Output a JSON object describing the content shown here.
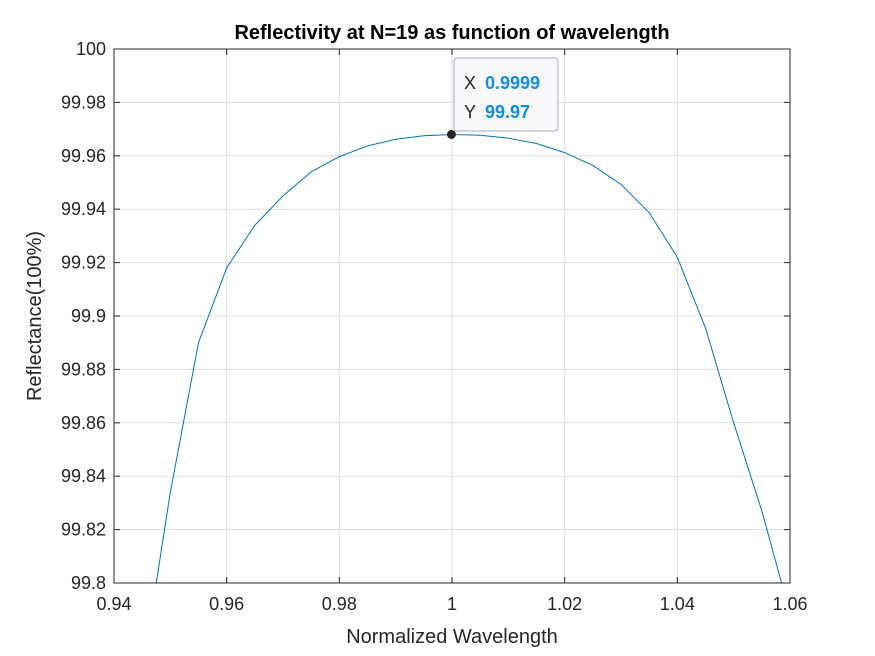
{
  "chart_data": {
    "type": "line",
    "title": "Reflectivity at N=19 as function of wavelength",
    "xlabel": "Normalized Wavelength",
    "ylabel": "Reflectance(100%)",
    "xlim": [
      0.94,
      1.06
    ],
    "ylim": [
      99.8,
      100
    ],
    "xticks": [
      "0.94",
      "0.96",
      "0.98",
      "1",
      "1.02",
      "1.04",
      "1.06"
    ],
    "yticks": [
      "99.8",
      "99.82",
      "99.84",
      "99.86",
      "99.88",
      "99.9",
      "99.92",
      "99.94",
      "99.96",
      "99.98",
      "100"
    ],
    "grid": true,
    "series": [
      {
        "color": "#0072bd",
        "x": [
          0.9475,
          0.95,
          0.955,
          0.96,
          0.965,
          0.97,
          0.975,
          0.98,
          0.985,
          0.99,
          0.995,
          1.0,
          1.005,
          1.01,
          1.015,
          1.02,
          1.025,
          1.03,
          1.035,
          1.04,
          1.045,
          1.05,
          1.055,
          1.0585
        ],
        "y": [
          99.8,
          99.834,
          99.89,
          99.918,
          99.934,
          99.945,
          99.954,
          99.9597,
          99.9637,
          99.9662,
          99.9675,
          99.968,
          99.9677,
          99.9666,
          99.9646,
          99.9612,
          99.9564,
          99.9493,
          99.9387,
          99.922,
          99.8955,
          99.86,
          99.827,
          99.8
        ]
      }
    ],
    "datatip": {
      "x_key": "X",
      "x_value": "0.9999",
      "y_key": "Y",
      "y_value": "99.97",
      "point_x": 0.9999,
      "point_y": 99.968,
      "value_color": "#0e8ee8"
    }
  }
}
